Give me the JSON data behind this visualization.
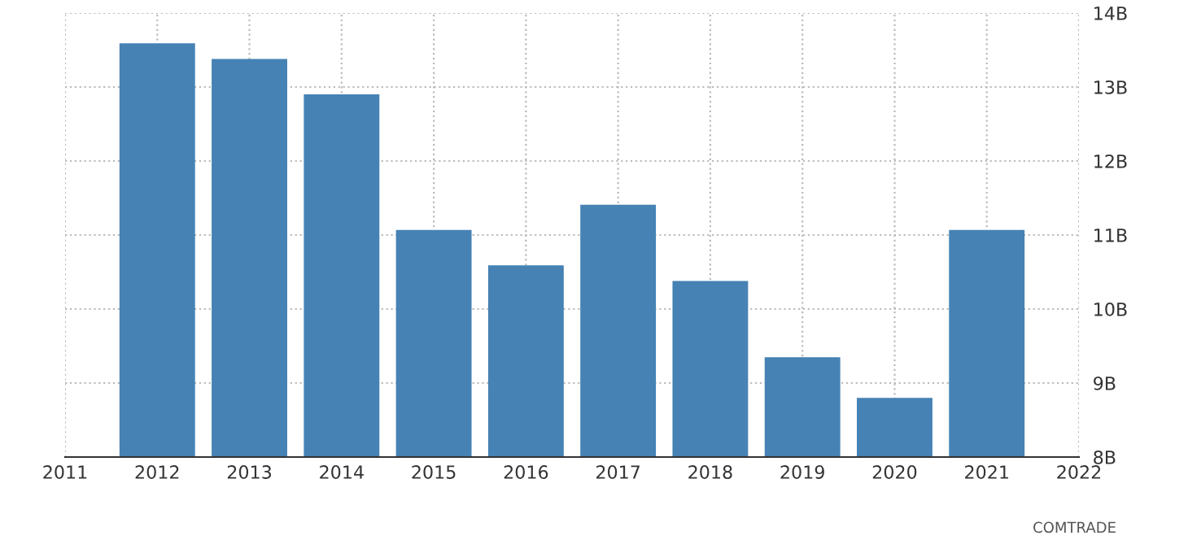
{
  "chart_data": {
    "type": "bar",
    "x": [
      2012,
      2013,
      2014,
      2015,
      2016,
      2017,
      2018,
      2019,
      2020,
      2021
    ],
    "values": [
      13.59,
      13.38,
      12.9,
      11.07,
      10.59,
      11.41,
      10.38,
      9.35,
      8.8,
      11.07
    ],
    "color": "#4682b4",
    "xlim": [
      2011,
      2022
    ],
    "xticks": [
      2011,
      2012,
      2013,
      2014,
      2015,
      2016,
      2017,
      2018,
      2019,
      2020,
      2021,
      2022
    ],
    "ylim": [
      8,
      14
    ],
    "yticks": [
      {
        "value": 8,
        "label": "8B"
      },
      {
        "value": 9,
        "label": "9B"
      },
      {
        "value": 10,
        "label": "10B"
      },
      {
        "value": 11,
        "label": "11B"
      },
      {
        "value": 12,
        "label": "12B"
      },
      {
        "value": 13,
        "label": "13B"
      },
      {
        "value": 14,
        "label": "14B"
      }
    ],
    "grid": true,
    "annotations": [
      "COMTRADE"
    ]
  }
}
